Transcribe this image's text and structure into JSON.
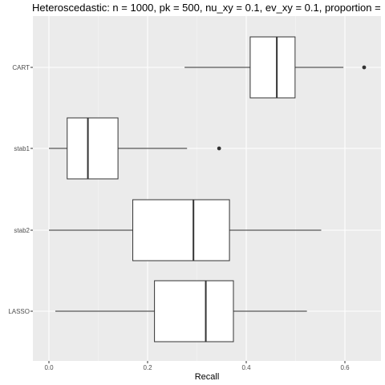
{
  "chart_data": {
    "type": "boxplot",
    "orientation": "horizontal",
    "title": "Heteroscedastic: n = 1000, pk = 500, nu_xy = 0.1, ev_xy = 0.1, proportion =",
    "xlabel": "Recall",
    "ylabel": "",
    "xlim": [
      -0.03,
      0.66
    ],
    "x_ticks": [
      0.0,
      0.2,
      0.4,
      0.6
    ],
    "x_tick_labels": [
      "0.0",
      "0.2",
      "0.4",
      "0.6"
    ],
    "grid": true,
    "theme": "ggplot2 grey",
    "categories": [
      "CART",
      "stab1",
      "stab2",
      "LASSO"
    ],
    "boxes": [
      {
        "category": "CART",
        "whisker_low": 0.275,
        "q1": 0.408,
        "median": 0.462,
        "q3": 0.499,
        "whisker_high": 0.597,
        "outliers": [
          0.639
        ]
      },
      {
        "category": "stab1",
        "whisker_low": 0.0,
        "q1": 0.037,
        "median": 0.079,
        "q3": 0.14,
        "whisker_high": 0.28,
        "outliers": [
          0.345
        ]
      },
      {
        "category": "stab2",
        "whisker_low": 0.0,
        "q1": 0.17,
        "median": 0.293,
        "q3": 0.366,
        "whisker_high": 0.552,
        "outliers": []
      },
      {
        "category": "LASSO",
        "whisker_low": 0.013,
        "q1": 0.214,
        "median": 0.318,
        "q3": 0.374,
        "whisker_high": 0.523,
        "outliers": []
      }
    ],
    "colors": {
      "panel_background": "#ebebeb",
      "grid_major": "#ffffff",
      "box_fill": "#ffffff",
      "box_stroke": "#333333",
      "tick_text": "#4d4d4d"
    }
  }
}
